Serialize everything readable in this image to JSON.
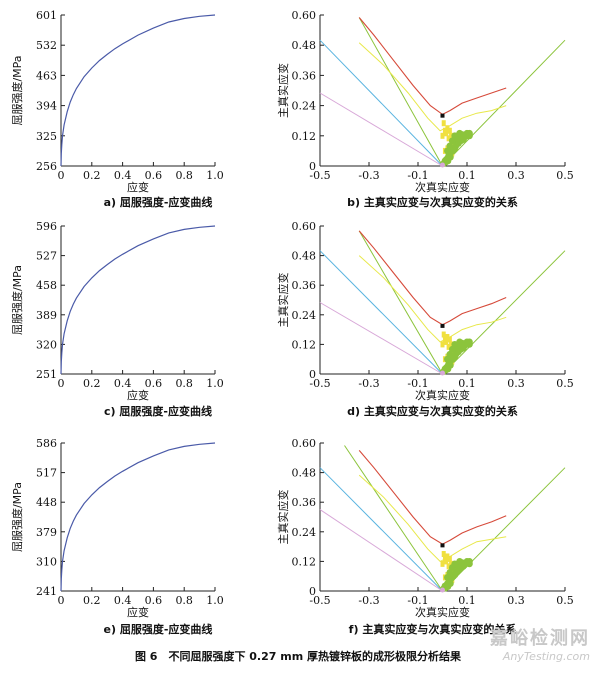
{
  "figure_caption": "图 6　不同屈服强度下 0.27 mm 厚热镀锌板的成形极限分析结果",
  "watermark": {
    "cn": "嘉峪检测网",
    "en": "AnyTesting.com"
  },
  "colors": {
    "stress_curve": "#4a5aa8",
    "axis": "#222222",
    "flc_red": "#d64a3a",
    "cyan_line": "#5ab4e0",
    "yellow_line": "#e8e84a",
    "green_line": "#8cc43c",
    "pink_line": "#d8a8d8",
    "yellow_points": "#f0e040",
    "green_points": "#8cc43c",
    "black_marker": "#111111"
  },
  "chart_data": [
    {
      "id": "a",
      "type": "line",
      "caption": "a) 屈服强度-应变曲线",
      "xlabel": "应变",
      "ylabel": "屈服强度/MPa",
      "xlim": [
        0,
        1
      ],
      "ylim": [
        256,
        601
      ],
      "xticks": [
        "0",
        "0.2",
        "0.4",
        "0.6",
        "0.8",
        "1.0"
      ],
      "yticks": [
        "256",
        "325",
        "394",
        "463",
        "532",
        "601"
      ],
      "series": [
        {
          "x": [
            0,
            0.002,
            0.005,
            0.01,
            0.02,
            0.04,
            0.06,
            0.08,
            0.1,
            0.15,
            0.2,
            0.25,
            0.3,
            0.35,
            0.4,
            0.5,
            0.6,
            0.7,
            0.8,
            0.9,
            1.0
          ],
          "y": [
            256,
            285,
            305,
            325,
            350,
            380,
            402,
            419,
            433,
            460,
            480,
            497,
            511,
            524,
            535,
            555,
            571,
            585,
            593,
            598,
            601
          ]
        }
      ]
    },
    {
      "id": "c",
      "type": "line",
      "caption": "c) 屈服强度-应变曲线",
      "xlabel": "应变",
      "ylabel": "屈服强度/MPa",
      "xlim": [
        0,
        1
      ],
      "ylim": [
        251,
        596
      ],
      "xticks": [
        "0",
        "0.2",
        "0.4",
        "0.6",
        "0.8",
        "1.0"
      ],
      "yticks": [
        "251",
        "320",
        "389",
        "458",
        "527",
        "596"
      ],
      "series": [
        {
          "x": [
            0,
            0.002,
            0.005,
            0.01,
            0.02,
            0.04,
            0.06,
            0.08,
            0.1,
            0.15,
            0.2,
            0.25,
            0.3,
            0.35,
            0.4,
            0.5,
            0.6,
            0.7,
            0.8,
            0.9,
            1.0
          ],
          "y": [
            251,
            280,
            300,
            320,
            345,
            375,
            397,
            414,
            428,
            455,
            475,
            492,
            506,
            519,
            530,
            550,
            566,
            580,
            588,
            593,
            596
          ]
        }
      ]
    },
    {
      "id": "e",
      "type": "line",
      "caption": "e) 屈服强度-应变曲线",
      "xlabel": "应变",
      "ylabel": "屈服强度/MPa",
      "xlim": [
        0,
        1
      ],
      "ylim": [
        241,
        586
      ],
      "xticks": [
        "0",
        "0.2",
        "0.4",
        "0.6",
        "0.8",
        "1.0"
      ],
      "yticks": [
        "241",
        "310",
        "379",
        "448",
        "517",
        "586"
      ],
      "series": [
        {
          "x": [
            0,
            0.002,
            0.005,
            0.01,
            0.02,
            0.04,
            0.06,
            0.08,
            0.1,
            0.15,
            0.2,
            0.25,
            0.3,
            0.35,
            0.4,
            0.5,
            0.6,
            0.7,
            0.8,
            0.9,
            1.0
          ],
          "y": [
            241,
            270,
            290,
            310,
            335,
            365,
            387,
            404,
            418,
            445,
            465,
            482,
            496,
            509,
            520,
            540,
            556,
            570,
            578,
            583,
            586
          ]
        }
      ]
    },
    {
      "id": "b",
      "type": "scatter",
      "caption": "b) 主真实应变与次真实应变的关系",
      "xlabel": "次真实应变",
      "ylabel": "主真实应变",
      "xlim": [
        -0.5,
        0.5
      ],
      "ylim": [
        0,
        0.6
      ],
      "xticks": [
        "-0.5",
        "-0.3",
        "-0.1",
        "0.1",
        "0.3",
        "0.5"
      ],
      "yticks": [
        "0",
        "0.12",
        "0.24",
        "0.36",
        "0.48",
        "0.60"
      ],
      "flc": {
        "x": [
          -0.34,
          -0.28,
          -0.2,
          -0.12,
          -0.05,
          0.0,
          0.03,
          0.08,
          0.14,
          0.2,
          0.26
        ],
        "y": [
          0.59,
          0.52,
          0.42,
          0.32,
          0.24,
          0.205,
          0.22,
          0.25,
          0.27,
          0.29,
          0.31
        ]
      },
      "lines": [
        {
          "name": "cyan",
          "x": [
            -0.5,
            0.0
          ],
          "y": [
            0.5,
            0.0
          ]
        },
        {
          "name": "pink",
          "x": [
            -0.5,
            0.0
          ],
          "y": [
            0.29,
            0.0
          ]
        },
        {
          "name": "green",
          "x": [
            -0.34,
            0.0,
            0.5
          ],
          "y": [
            0.59,
            0.0,
            0.5
          ]
        },
        {
          "name": "yellow",
          "x": [
            -0.34,
            -0.24,
            -0.14,
            -0.06,
            -0.01,
            0.03,
            0.08,
            0.14,
            0.2,
            0.26
          ],
          "y": [
            0.49,
            0.4,
            0.29,
            0.19,
            0.14,
            0.16,
            0.19,
            0.21,
            0.22,
            0.24
          ]
        }
      ],
      "yellow_points": {
        "x": [
          0.0,
          0.005,
          0.01,
          0.015,
          0.02,
          0.025,
          0.03,
          0.035,
          0.04,
          0.045,
          0.05,
          0.01,
          0.02,
          0.03,
          0.04
        ],
        "y": [
          0.12,
          0.17,
          0.14,
          0.13,
          0.15,
          0.11,
          0.14,
          0.12,
          0.1,
          0.09,
          0.08,
          0.06,
          0.07,
          0.06,
          0.05
        ]
      },
      "green_points": {
        "x": [
          0.01,
          0.02,
          0.03,
          0.04,
          0.05,
          0.06,
          0.07,
          0.08,
          0.09,
          0.1,
          0.11,
          0.005,
          0.015,
          0.025,
          0.035,
          0.045,
          0.055,
          0.065,
          0.075,
          0.085,
          0.04,
          0.06,
          0.08,
          0.1,
          0.02,
          0.03,
          0.05,
          0.07,
          0.09,
          0.11,
          0.012,
          0.022,
          0.032
        ],
        "y": [
          0.02,
          0.03,
          0.05,
          0.06,
          0.07,
          0.09,
          0.1,
          0.11,
          0.12,
          0.12,
          0.13,
          0.01,
          0.025,
          0.04,
          0.055,
          0.065,
          0.08,
          0.09,
          0.1,
          0.105,
          0.1,
          0.11,
          0.125,
          0.13,
          0.06,
          0.08,
          0.12,
          0.13,
          0.115,
          0.12,
          0.015,
          0.02,
          0.035
        ]
      },
      "marker": {
        "x": 0.0,
        "y": 0.2
      }
    },
    {
      "id": "d",
      "type": "scatter",
      "caption": "d) 主真实应变与次真实应变的关系",
      "xlabel": "次真实应变",
      "ylabel": "主真实应变",
      "xlim": [
        -0.5,
        0.5
      ],
      "ylim": [
        0,
        0.6
      ],
      "xticks": [
        "-0.5",
        "-0.3",
        "-0.1",
        "0.1",
        "0.3",
        "0.5"
      ],
      "yticks": [
        "0",
        "0.12",
        "0.24",
        "0.36",
        "0.48",
        "0.60"
      ],
      "flc": {
        "x": [
          -0.34,
          -0.28,
          -0.2,
          -0.12,
          -0.05,
          0.0,
          0.03,
          0.08,
          0.14,
          0.2,
          0.26
        ],
        "y": [
          0.58,
          0.51,
          0.41,
          0.31,
          0.23,
          0.2,
          0.215,
          0.245,
          0.265,
          0.285,
          0.31
        ]
      },
      "lines": [
        {
          "name": "cyan",
          "x": [
            -0.5,
            0.0
          ],
          "y": [
            0.5,
            0.0
          ]
        },
        {
          "name": "pink",
          "x": [
            -0.5,
            0.0
          ],
          "y": [
            0.29,
            0.0
          ]
        },
        {
          "name": "green",
          "x": [
            -0.34,
            0.0,
            0.5
          ],
          "y": [
            0.58,
            0.0,
            0.5
          ]
        },
        {
          "name": "yellow",
          "x": [
            -0.34,
            -0.24,
            -0.14,
            -0.06,
            -0.01,
            0.03,
            0.08,
            0.14,
            0.2,
            0.26
          ],
          "y": [
            0.48,
            0.39,
            0.28,
            0.18,
            0.13,
            0.15,
            0.18,
            0.2,
            0.21,
            0.23
          ]
        }
      ],
      "yellow_points": {
        "x": [
          0.0,
          0.005,
          0.01,
          0.015,
          0.02,
          0.025,
          0.03,
          0.035,
          0.04,
          0.045,
          0.05,
          0.01,
          0.02,
          0.03,
          0.04
        ],
        "y": [
          0.12,
          0.16,
          0.14,
          0.13,
          0.15,
          0.11,
          0.14,
          0.12,
          0.1,
          0.09,
          0.08,
          0.06,
          0.07,
          0.06,
          0.05
        ]
      },
      "green_points": {
        "x": [
          0.01,
          0.02,
          0.03,
          0.04,
          0.05,
          0.06,
          0.07,
          0.08,
          0.09,
          0.1,
          0.11,
          0.005,
          0.015,
          0.025,
          0.035,
          0.045,
          0.055,
          0.065,
          0.075,
          0.085,
          0.04,
          0.06,
          0.08,
          0.1,
          0.02,
          0.03,
          0.05,
          0.07,
          0.09,
          0.11,
          0.012,
          0.022,
          0.032
        ],
        "y": [
          0.02,
          0.03,
          0.05,
          0.06,
          0.07,
          0.09,
          0.1,
          0.11,
          0.12,
          0.12,
          0.13,
          0.01,
          0.025,
          0.04,
          0.055,
          0.065,
          0.08,
          0.09,
          0.1,
          0.105,
          0.1,
          0.11,
          0.125,
          0.13,
          0.06,
          0.08,
          0.12,
          0.13,
          0.115,
          0.12,
          0.015,
          0.02,
          0.035
        ]
      },
      "marker": {
        "x": 0.0,
        "y": 0.195
      }
    },
    {
      "id": "f",
      "type": "scatter",
      "caption": "f) 主真实应变与次真实应变的关系",
      "xlabel": "次真实应变",
      "ylabel": "主真实应变",
      "xlim": [
        -0.5,
        0.5
      ],
      "ylim": [
        0,
        0.6
      ],
      "xticks": [
        "-0.5",
        "-0.3",
        "-0.1",
        "0.1",
        "0.3",
        "0.5"
      ],
      "yticks": [
        "0",
        "0.12",
        "0.24",
        "0.36",
        "0.48",
        "0.60"
      ],
      "flc": {
        "x": [
          -0.34,
          -0.28,
          -0.2,
          -0.12,
          -0.05,
          0.0,
          0.03,
          0.08,
          0.14,
          0.2,
          0.26
        ],
        "y": [
          0.57,
          0.5,
          0.4,
          0.3,
          0.22,
          0.19,
          0.205,
          0.235,
          0.26,
          0.28,
          0.305
        ]
      },
      "lines": [
        {
          "name": "cyan",
          "x": [
            -0.5,
            0.0
          ],
          "y": [
            0.5,
            0.0
          ]
        },
        {
          "name": "pink",
          "x": [
            -0.5,
            0.0
          ],
          "y": [
            0.33,
            0.0
          ]
        },
        {
          "name": "green",
          "x": [
            -0.4,
            0.0,
            0.5
          ],
          "y": [
            0.59,
            0.0,
            0.5
          ]
        },
        {
          "name": "yellow",
          "x": [
            -0.34,
            -0.24,
            -0.14,
            -0.06,
            -0.01,
            0.03,
            0.08,
            0.14,
            0.2,
            0.26
          ],
          "y": [
            0.47,
            0.38,
            0.27,
            0.17,
            0.12,
            0.14,
            0.17,
            0.2,
            0.21,
            0.22
          ]
        }
      ],
      "yellow_points": {
        "x": [
          0.0,
          0.005,
          0.01,
          0.015,
          0.02,
          0.025,
          0.03,
          0.035,
          0.04,
          0.045,
          0.05,
          0.01,
          0.02,
          0.03,
          0.04
        ],
        "y": [
          0.11,
          0.15,
          0.13,
          0.12,
          0.14,
          0.1,
          0.13,
          0.11,
          0.09,
          0.085,
          0.075,
          0.055,
          0.065,
          0.055,
          0.045
        ]
      },
      "green_points": {
        "x": [
          0.01,
          0.02,
          0.03,
          0.04,
          0.05,
          0.06,
          0.07,
          0.08,
          0.09,
          0.1,
          0.11,
          0.005,
          0.015,
          0.025,
          0.035,
          0.045,
          0.055,
          0.065,
          0.075,
          0.085,
          0.04,
          0.06,
          0.08,
          0.1,
          0.02,
          0.03,
          0.05,
          0.07,
          0.09,
          0.11,
          0.012,
          0.022,
          0.032
        ],
        "y": [
          0.02,
          0.03,
          0.045,
          0.055,
          0.065,
          0.08,
          0.09,
          0.1,
          0.11,
          0.115,
          0.12,
          0.01,
          0.02,
          0.035,
          0.05,
          0.06,
          0.075,
          0.085,
          0.095,
          0.1,
          0.095,
          0.105,
          0.115,
          0.12,
          0.055,
          0.075,
          0.11,
          0.12,
          0.105,
          0.11,
          0.012,
          0.018,
          0.03
        ]
      },
      "marker": {
        "x": 0.0,
        "y": 0.185
      }
    }
  ]
}
